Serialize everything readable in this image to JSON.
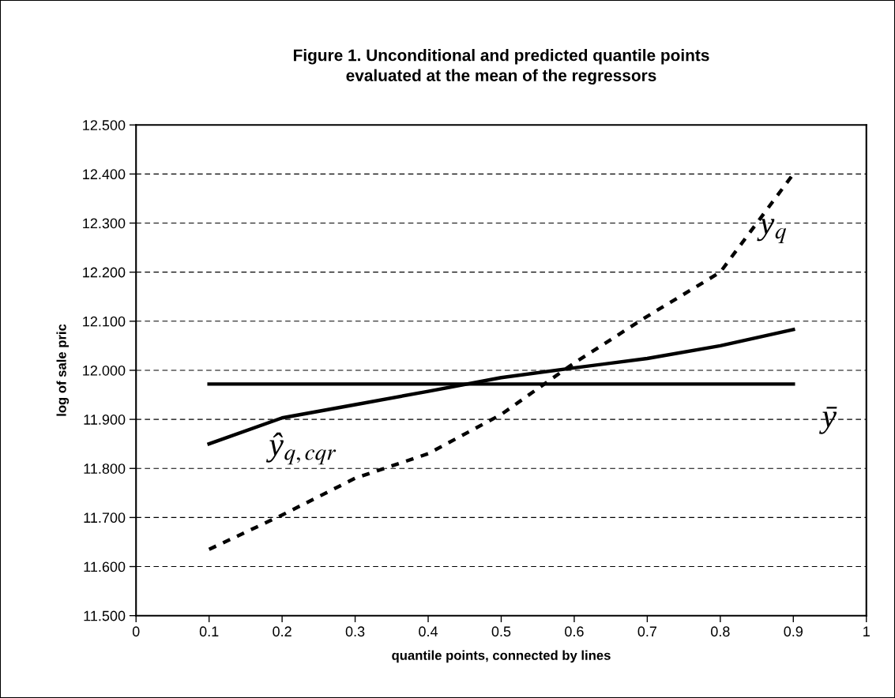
{
  "chart_data": {
    "type": "line",
    "title": "Figure 1. Unconditional and predicted quantile points\nevaluated at the mean of the regressors",
    "xlabel": "quantile points, connected by lines",
    "ylabel": "log of sale pric",
    "x": [
      0.1,
      0.2,
      0.3,
      0.4,
      0.5,
      0.6,
      0.7,
      0.8,
      0.9
    ],
    "series": [
      {
        "name": "y$_{q}$",
        "color": "#000000",
        "line_style": "dotted",
        "values": [
          11.635,
          11.705,
          11.78,
          11.83,
          11.91,
          12.015,
          12.11,
          12.2,
          12.4
        ]
      },
      {
        "name": "ŷ$_{q,cqr}$",
        "color": "#000000",
        "line_style": "solid",
        "values": [
          11.85,
          11.903,
          11.93,
          11.957,
          11.985,
          12.005,
          12.024,
          12.05,
          12.083
        ]
      },
      {
        "name": "ȳ",
        "color": "#000000",
        "line_style": "solid",
        "values": [
          11.972,
          11.972,
          11.972,
          11.972,
          11.972,
          11.972,
          11.972,
          11.972,
          11.972
        ]
      }
    ],
    "xlim": [
      0,
      1
    ],
    "xticks": [
      0,
      0.1,
      0.2,
      0.3,
      0.4,
      0.5,
      0.6,
      0.7,
      0.8,
      0.9,
      1
    ],
    "ylim": [
      11.5,
      12.5
    ],
    "yticks": [
      {
        "value": 11.5,
        "label": "11.500"
      },
      {
        "value": 11.6,
        "label": "11.600"
      },
      {
        "value": 11.7,
        "label": "11.700"
      },
      {
        "value": 11.8,
        "label": "11.800"
      },
      {
        "value": 11.9,
        "label": "11.900"
      },
      {
        "value": 12.0,
        "label": "12.000"
      },
      {
        "value": 12.1,
        "label": "12.100"
      },
      {
        "value": 12.2,
        "label": "12.200"
      },
      {
        "value": 12.3,
        "label": "12.300"
      },
      {
        "value": 12.4,
        "label": "12.400"
      },
      {
        "value": 12.5,
        "label": "12.500"
      }
    ],
    "grid": "y",
    "marker": "none"
  }
}
